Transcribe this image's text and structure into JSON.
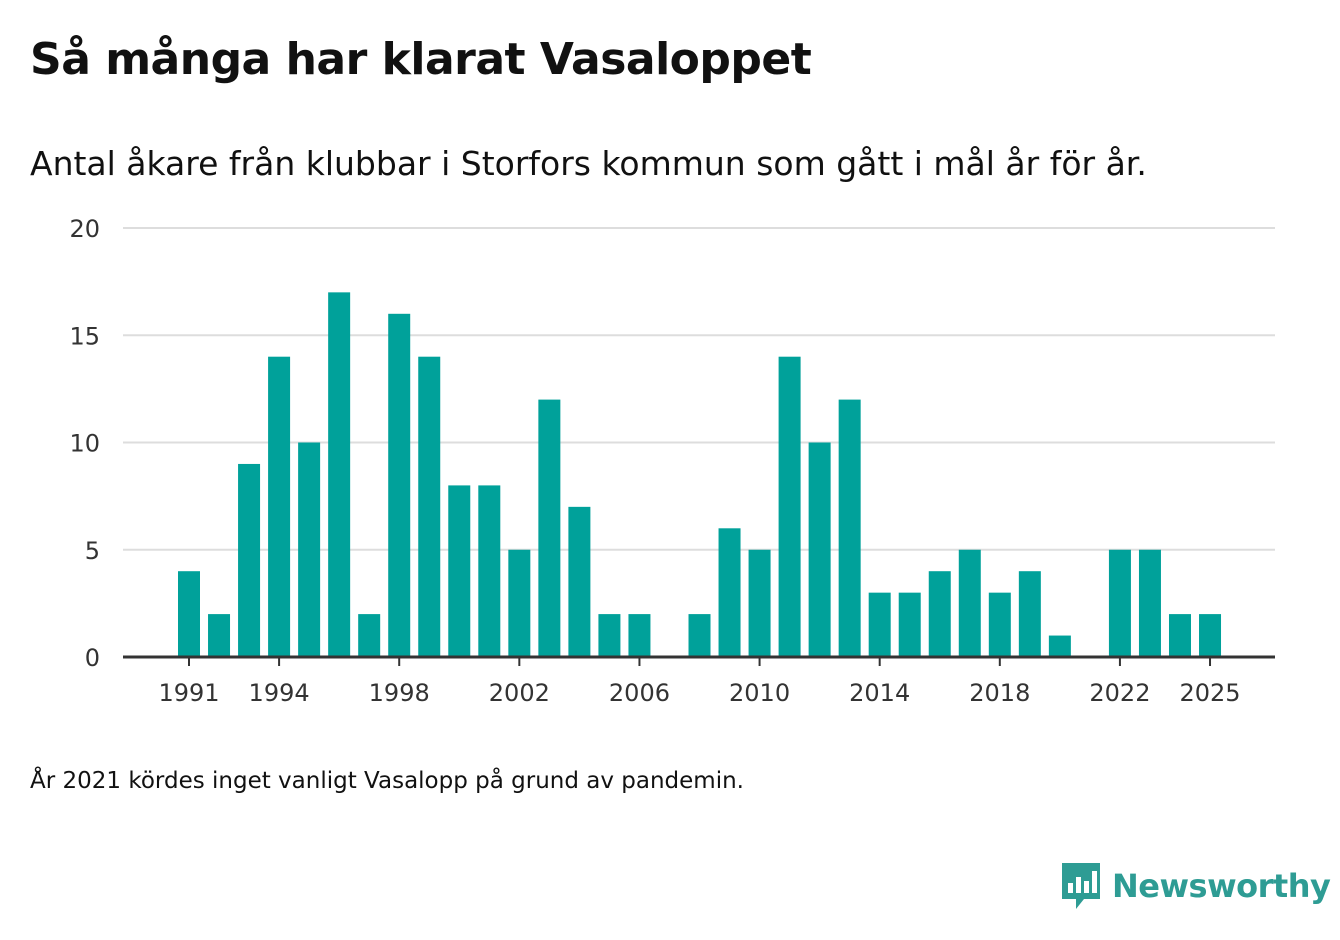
{
  "title": "Så många har klarat Vasaloppet",
  "subtitle": "Antal åkare från klubbar i Storfors kommun som gått i mål år för år.",
  "note": "År 2021 kördes inget vanligt Vasalopp på grund av pandemin.",
  "brand": {
    "name": "Newsworthy",
    "color": "#2e9c94",
    "icon": "newsworthy-logo-icon"
  },
  "colors": {
    "bar": "#00a19a",
    "grid": "#dddddd",
    "axis": "#333333"
  },
  "chart_data": {
    "type": "bar",
    "title": "Så många har klarat Vasaloppet",
    "xlabel": "",
    "ylabel": "",
    "ylim": [
      0,
      20
    ],
    "yticks": [
      0,
      5,
      10,
      15,
      20
    ],
    "xticks": [
      "1991",
      "1994",
      "1998",
      "2002",
      "2006",
      "2010",
      "2014",
      "2018",
      "2022",
      "2025"
    ],
    "grid": true,
    "categories": [
      "1991",
      "1992",
      "1993",
      "1994",
      "1995",
      "1996",
      "1997",
      "1998",
      "1999",
      "2000",
      "2001",
      "2002",
      "2003",
      "2004",
      "2005",
      "2006",
      "2007",
      "2008",
      "2009",
      "2010",
      "2011",
      "2012",
      "2013",
      "2014",
      "2015",
      "2016",
      "2017",
      "2018",
      "2019",
      "2020",
      "2021",
      "2022",
      "2023",
      "2024",
      "2025"
    ],
    "values": [
      4,
      2,
      9,
      14,
      10,
      17,
      2,
      16,
      14,
      8,
      8,
      5,
      12,
      7,
      2,
      2,
      0,
      2,
      6,
      5,
      14,
      10,
      12,
      3,
      3,
      4,
      5,
      3,
      4,
      1,
      0,
      5,
      5,
      2,
      2
    ]
  }
}
